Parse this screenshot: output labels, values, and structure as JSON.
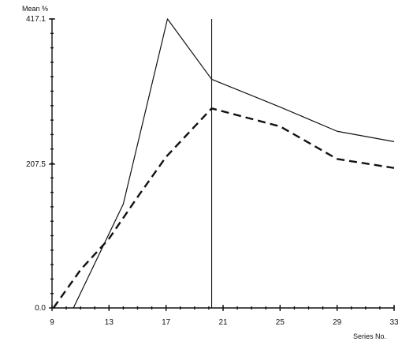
{
  "chart_data": {
    "type": "line",
    "title": "",
    "xlabel": "Series No.",
    "ylabel": "Mean %",
    "xlim": [
      9,
      33
    ],
    "ylim": [
      0,
      417.1
    ],
    "x_ticks": [
      9,
      13,
      17,
      21,
      25,
      29,
      33
    ],
    "x_tick_labels": [
      "9",
      "13",
      "17",
      "21",
      "25",
      "29",
      "33"
    ],
    "y_ticks": [
      0,
      207.5,
      417.1
    ],
    "y_tick_labels": [
      "0.0",
      "207.5",
      "417.1"
    ],
    "reference_line_x": 20.2,
    "series": [
      {
        "style": "solid",
        "color": "#111111",
        "x": [
          10.5,
          14,
          17.1,
          20.2,
          25,
          29,
          33
        ],
        "y": [
          0,
          150,
          417.1,
          330,
          290,
          255,
          240
        ]
      },
      {
        "style": "dashed",
        "color": "#111111",
        "x": [
          9.1,
          11,
          13,
          15,
          17,
          20.2,
          25,
          29,
          33
        ],
        "y": [
          0,
          55,
          100,
          160,
          218,
          288,
          262,
          215,
          202
        ]
      }
    ],
    "grid": false,
    "legend": "none"
  }
}
